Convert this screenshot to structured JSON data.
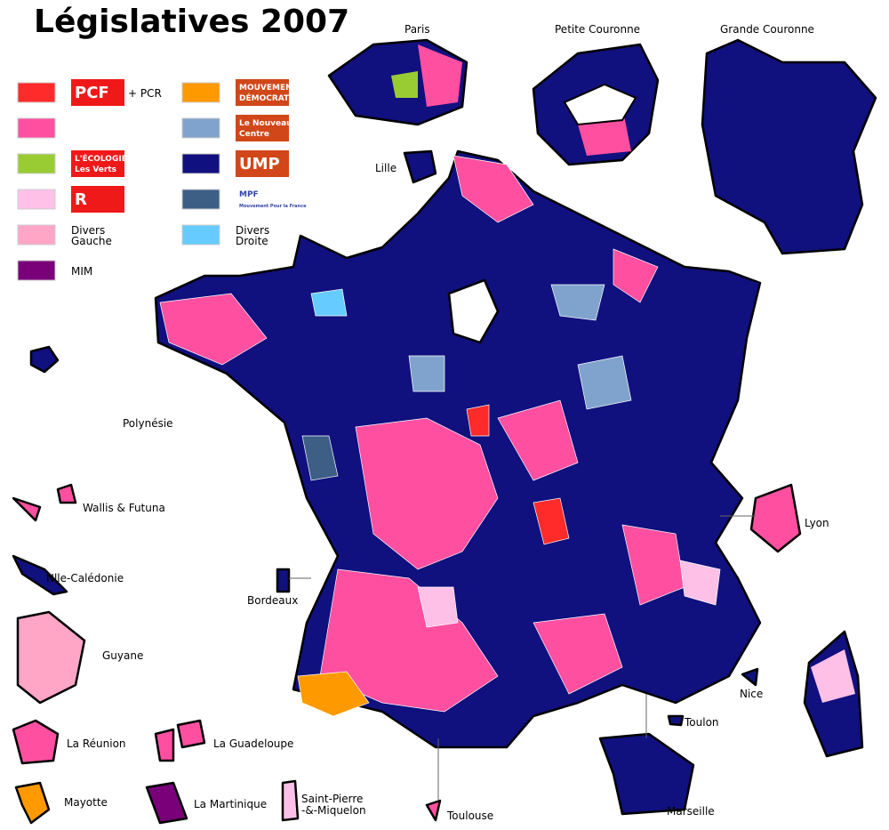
{
  "header": {
    "title": "Législatives 2007"
  },
  "legend": [
    {
      "color": "#ff2a2a",
      "logo": "PCF",
      "label": "+ PCR"
    },
    {
      "color": "#ff4fa0"
    },
    {
      "color": "#99cc33",
      "logo": "L'ÉCOLOGIE",
      "logo2": "Les Verts"
    },
    {
      "color": "#ffc0e8",
      "logo": "R"
    },
    {
      "color": "#ffa6c6",
      "label": "Divers",
      "label2": "Gauche"
    },
    {
      "color": "#7a007a",
      "label": "MIM"
    },
    {
      "color": "#ff9900",
      "logo": "MOUVEMENT",
      "logo2": "DÉMOCRATE"
    },
    {
      "color": "#7fa3cc",
      "logo": "Le Nouveau",
      "logo2": "Centre"
    },
    {
      "color": "#10107e",
      "logo": "UMP"
    },
    {
      "color": "#3d5f86",
      "logo": "MPF",
      "logo2": "Mouvement Pour la France"
    },
    {
      "color": "#66ccff",
      "label": "Divers",
      "label2": "Droite"
    }
  ],
  "places": [
    "Paris",
    "Petite Couronne",
    "Grande Couronne",
    "Lille",
    "Lyon",
    "Nice",
    "Toulon",
    "Marseille",
    "Toulouse",
    "Bordeaux",
    "Polynésie",
    "Wallis & Futuna",
    "Nlle-Calédonie",
    "Guyane",
    "La Réunion",
    "La Guadeloupe",
    "Mayotte",
    "La Martinique",
    "Saint-Pierre",
    "-&-Miquelon"
  ]
}
